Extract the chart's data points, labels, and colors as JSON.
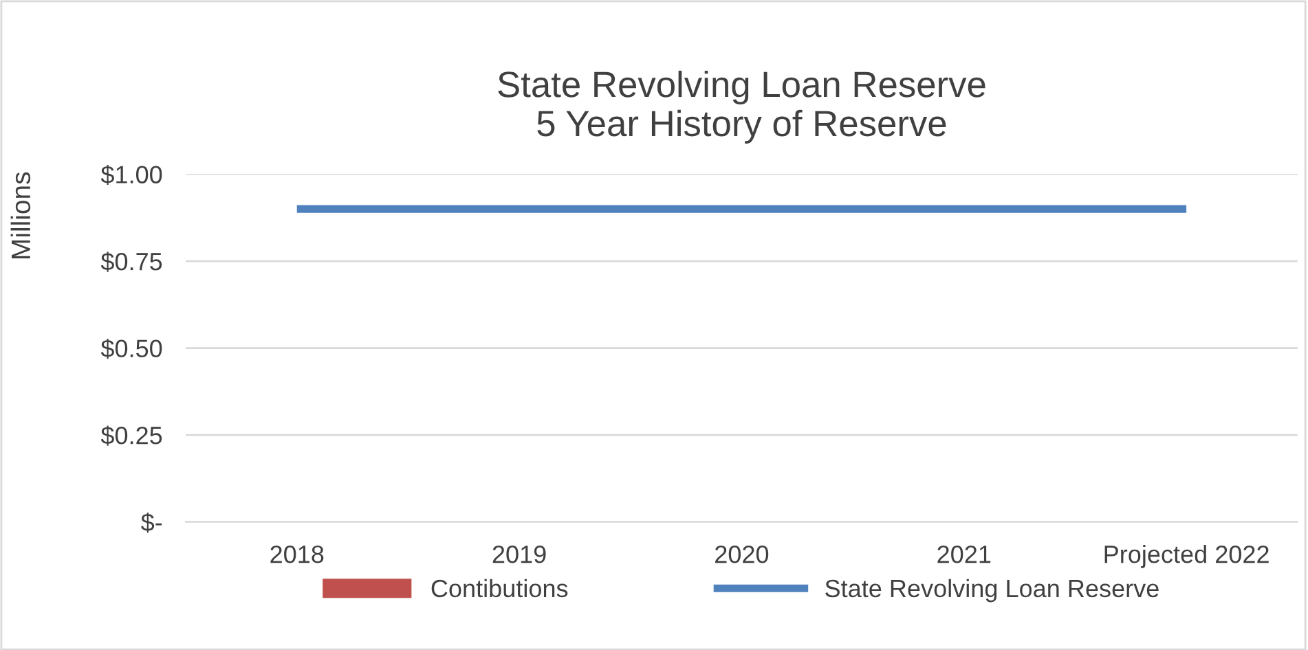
{
  "chart_data": {
    "type": "bar",
    "title": "State Revolving Loan Reserve\n5 Year History of Reserve",
    "ylabel": "Millions",
    "categories": [
      "2018",
      "2019",
      "2020",
      "2021",
      "Projected 2022"
    ],
    "series": [
      {
        "name": "Contibutions",
        "color": "#c0504d",
        "values": [
          0,
          0,
          0,
          0,
          0
        ]
      },
      {
        "name": "State Revolving Loan Reserve",
        "type": "line",
        "color": "#4f81bd",
        "values": [
          0.9,
          0.9,
          0.9,
          0.9,
          0.9
        ]
      }
    ],
    "ylim": [
      0,
      1
    ],
    "yticks": [
      {
        "value": 0,
        "label": "$-"
      },
      {
        "value": 0.25,
        "label": "$0.25"
      },
      {
        "value": 0.5,
        "label": "$0.50"
      },
      {
        "value": 0.75,
        "label": "$0.75"
      },
      {
        "value": 1,
        "label": "$1.00"
      }
    ],
    "grid": "y",
    "legend": "bottom",
    "marker": "none",
    "line_style": "solid"
  }
}
